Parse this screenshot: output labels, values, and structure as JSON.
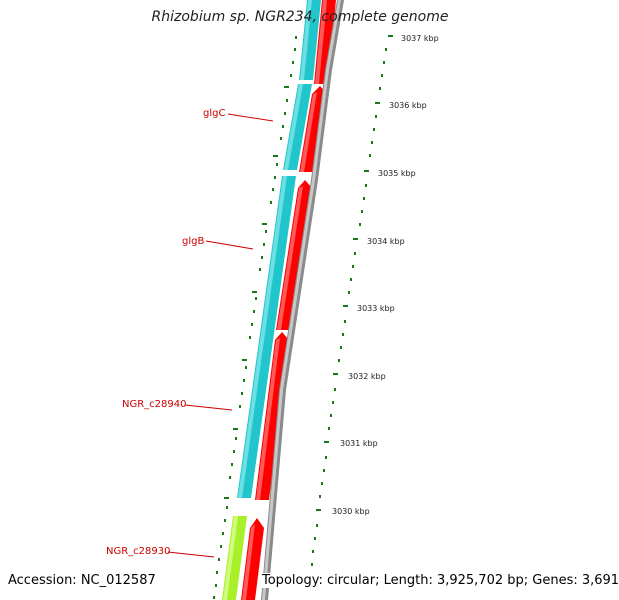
{
  "title": "Rhizobium sp. NGR234, complete genome",
  "accession": "Accession: NC_012587",
  "topology": "Topology: circular; Length: 3,925,702 bp; Genes: 3,691",
  "colors": {
    "forward_cds": "#21c6cc",
    "reverse_cds": "#ff0000",
    "other_feature": "#a8f02a",
    "backbone": "#8a8a8a",
    "tick": "#1a7a1a",
    "label": "#cc0000"
  },
  "kbp_ticks": [
    "3037 kbp",
    "3036 kbp",
    "3035 kbp",
    "3034 kbp",
    "3033 kbp",
    "3032 kbp",
    "3031 kbp",
    "3030 kbp"
  ],
  "gene_labels": [
    "glgC",
    "glgB",
    "NGR_c28940",
    "NGR_c28930"
  ]
}
